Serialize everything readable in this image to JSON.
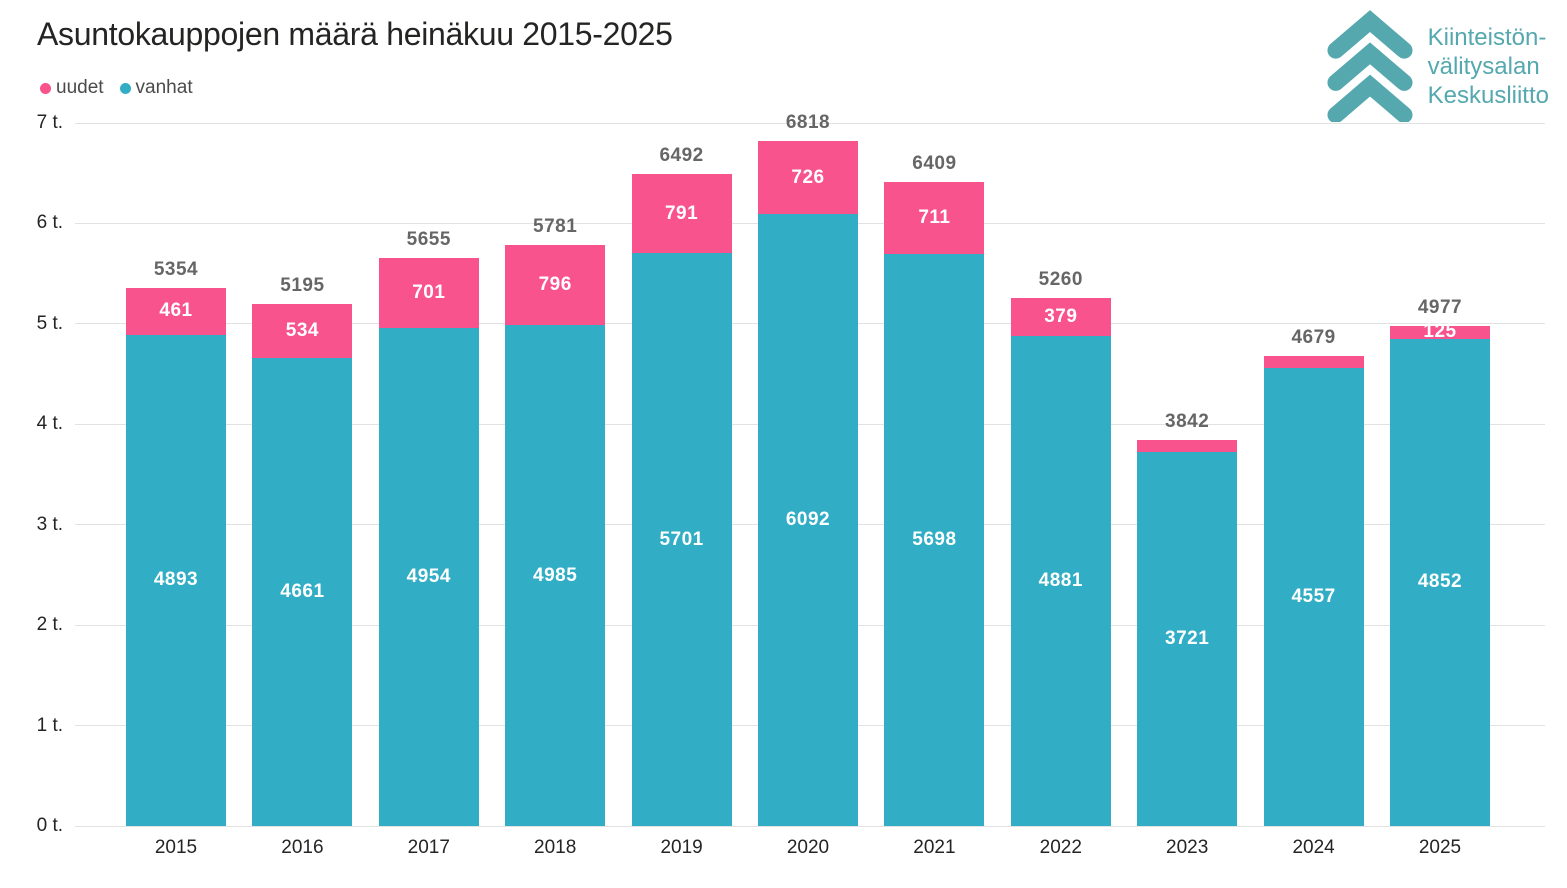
{
  "title": "Asuntokauppojen määrä heinäkuu 2015-2025",
  "legend": {
    "items": [
      {
        "label": "uudet",
        "color": "#f8538d"
      },
      {
        "label": "vanhat",
        "color": "#31aec5"
      }
    ]
  },
  "logo": {
    "name": "kiinteistonvalitysalan-keskusliitto-logo",
    "lines": [
      "Kiinteistön-",
      "välitysalan",
      "Keskusliitto"
    ],
    "color": "#54a8ae"
  },
  "colors": {
    "uudet": "#f8538d",
    "vanhat": "#31aec5",
    "gridline": "#e2e2e2",
    "total_label": "#666666",
    "axis_text": "#252423"
  },
  "chart_data": {
    "type": "bar",
    "stacked": true,
    "title": "Asuntokauppojen määrä heinäkuu 2015-2025",
    "categories": [
      "2015",
      "2016",
      "2017",
      "2018",
      "2019",
      "2020",
      "2021",
      "2022",
      "2023",
      "2024",
      "2025"
    ],
    "series": [
      {
        "name": "vanhat",
        "color": "#31aec5",
        "values": [
          4893,
          4661,
          4954,
          4985,
          5701,
          6092,
          5698,
          4881,
          3721,
          4557,
          4852
        ],
        "labels_shown": [
          true,
          true,
          true,
          true,
          true,
          true,
          true,
          true,
          true,
          true,
          true
        ]
      },
      {
        "name": "uudet",
        "color": "#f8538d",
        "values": [
          461,
          534,
          701,
          796,
          791,
          726,
          711,
          379,
          121,
          122,
          125
        ],
        "labels_shown": [
          true,
          true,
          true,
          true,
          true,
          true,
          true,
          true,
          false,
          false,
          true
        ]
      }
    ],
    "totals": [
      5354,
      5195,
      5655,
      5781,
      6492,
      6818,
      6409,
      5260,
      3842,
      4679,
      4977
    ],
    "xlabel": "",
    "ylabel": "",
    "yticks": [
      "0 t.",
      "1 t.",
      "2 t.",
      "3 t.",
      "4 t.",
      "5 t.",
      "6 t.",
      "7 t."
    ],
    "ylim": [
      0,
      7000
    ],
    "grid": true,
    "legend_position": "top-left"
  }
}
